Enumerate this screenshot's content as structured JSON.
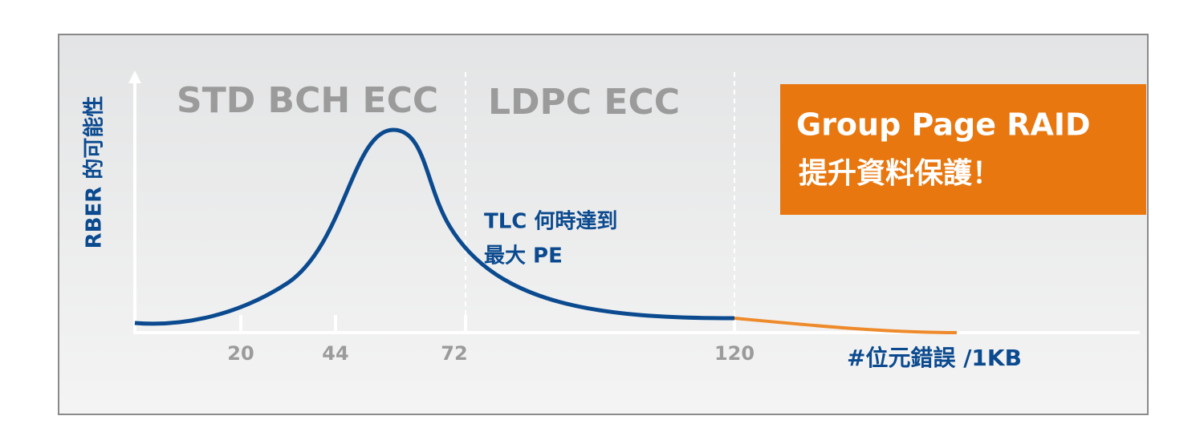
{
  "regions": [
    "STD BCH ECC",
    "LDPC ECC"
  ],
  "callout": {
    "title": "Group Page RAID",
    "subtitle": "提升資料保護！"
  },
  "annotation": [
    "TLC 何時達到",
    "最大 PE"
  ],
  "y_axis_label": "RBER 的可能性",
  "x_axis_label": "#位元錯誤 /1KB",
  "x_tick_labels": [
    "20",
    "44",
    "72",
    "120"
  ]
}
